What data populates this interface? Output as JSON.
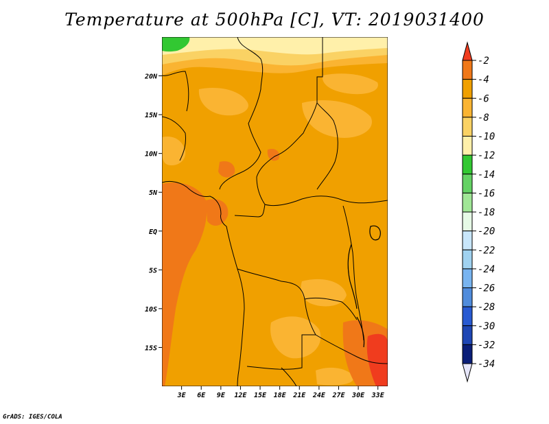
{
  "chart_data": {
    "type": "heatmap",
    "title": "Temperature at 500hPa [C], VT: 2019031400",
    "variable": "Temperature at 500hPa",
    "units": "C",
    "valid_time": "2019031400",
    "x_axis": {
      "range": [
        0,
        34.5
      ],
      "ticks": [
        {
          "value": 3,
          "label": "3E"
        },
        {
          "value": 6,
          "label": "6E"
        },
        {
          "value": 9,
          "label": "9E"
        },
        {
          "value": 12,
          "label": "12E"
        },
        {
          "value": 15,
          "label": "15E"
        },
        {
          "value": 18,
          "label": "18E"
        },
        {
          "value": 21,
          "label": "21E"
        },
        {
          "value": 24,
          "label": "24E"
        },
        {
          "value": 27,
          "label": "27E"
        },
        {
          "value": 30,
          "label": "30E"
        },
        {
          "value": 33,
          "label": "33E"
        }
      ]
    },
    "y_axis": {
      "range": [
        -20,
        25
      ],
      "ticks": [
        {
          "value": 20,
          "label": "20N"
        },
        {
          "value": 15,
          "label": "15N"
        },
        {
          "value": 10,
          "label": "10N"
        },
        {
          "value": 5,
          "label": "5N"
        },
        {
          "value": 0,
          "label": "EQ"
        },
        {
          "value": -5,
          "label": "5S"
        },
        {
          "value": -10,
          "label": "10S"
        },
        {
          "value": -15,
          "label": "15S"
        }
      ]
    },
    "colorbar": {
      "levels": [
        "-2",
        "-4",
        "-6",
        "-8",
        "-10",
        "-12",
        "-14",
        "-16",
        "-18",
        "-20",
        "-22",
        "-24",
        "-26",
        "-28",
        "-30",
        "-32",
        "-34"
      ],
      "colors": [
        "#f03c1e",
        "#f07818",
        "#f0a000",
        "#fab432",
        "#fad264",
        "#fff0aa",
        "#32c832",
        "#64d264",
        "#a0e696",
        "#e6fae6",
        "#c8e6fa",
        "#a0d2f0",
        "#78b4f0",
        "#508cdc",
        "#285ad2",
        "#1e46b4",
        "#0a1e78",
        "#e6e6fa"
      ]
    },
    "field_bands": [
      {
        "color": "#f0a000",
        "value_range": [
          -6,
          -4
        ],
        "region": "dominant field across most of the domain"
      },
      {
        "color": "#fab432",
        "value_range": [
          -8,
          -6
        ],
        "region": "northern Sahel and patches in south"
      },
      {
        "color": "#fad264",
        "value_range": [
          -10,
          -8
        ],
        "region": "band near 20N"
      },
      {
        "color": "#fff0aa",
        "value_range": [
          -12,
          -10
        ],
        "region": "far north near 23-25N"
      },
      {
        "color": "#32c832",
        "value_range": [
          -14,
          -12
        ],
        "region": "small patch at northwest corner"
      },
      {
        "color": "#f07818",
        "value_range": [
          -4,
          -2
        ],
        "region": "western ocean, Gulf of Guinea, southeast"
      },
      {
        "color": "#f03c1e",
        "value_range": [
          -2,
          0
        ],
        "region": "southeast corner near 15-20S, 33E"
      }
    ]
  },
  "credit": "GrADS: IGES/COLA"
}
